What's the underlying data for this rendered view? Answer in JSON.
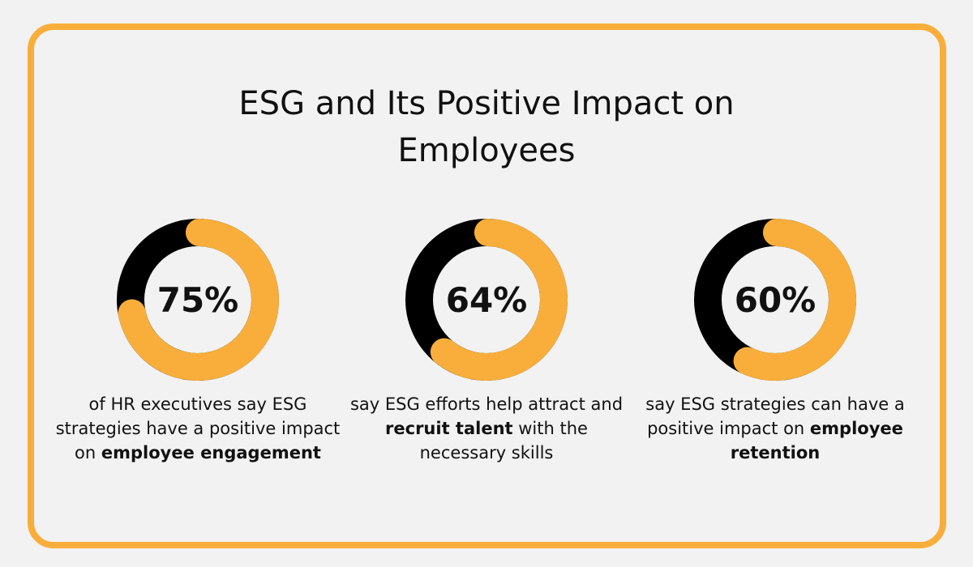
{
  "title": {
    "line1": "ESG and Its Positive Impact on",
    "line2": "Employees"
  },
  "colors": {
    "accent": "#f9ae3b",
    "dark": "#000000",
    "background": "#f2f2f2"
  },
  "chart_data": [
    {
      "type": "pie",
      "variant": "donut",
      "label": "75%",
      "values": [
        75,
        25
      ],
      "description_parts": [
        {
          "text": "of HR executives say ESG strategies have a positive impact on ",
          "bold": false
        },
        {
          "text": "employee engagement",
          "bold": true
        }
      ]
    },
    {
      "type": "pie",
      "variant": "donut",
      "label": "64%",
      "values": [
        64,
        36
      ],
      "description_parts": [
        {
          "text": "say ESG efforts help attract and ",
          "bold": false
        },
        {
          "text": "recruit talent",
          "bold": true
        },
        {
          "text": " with the necessary skills",
          "bold": false
        }
      ]
    },
    {
      "type": "pie",
      "variant": "donut",
      "label": "60%",
      "values": [
        60,
        40
      ],
      "description_parts": [
        {
          "text": "say ESG strategies can have a positive impact on ",
          "bold": false
        },
        {
          "text": "employee retention",
          "bold": true
        }
      ]
    }
  ]
}
